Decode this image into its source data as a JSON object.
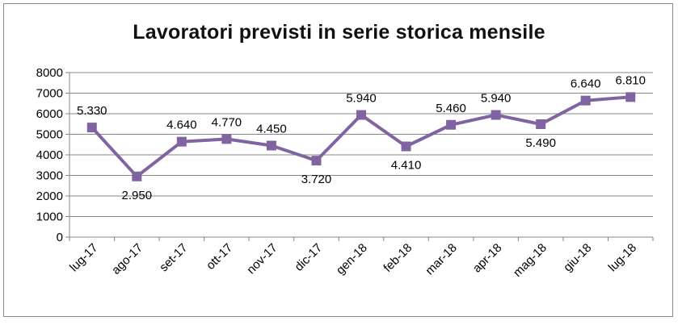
{
  "chart_data": {
    "type": "line",
    "title": "Lavoratori previsti in serie storica mensile",
    "xlabel": "",
    "ylabel": "",
    "categories": [
      "lug-17",
      "ago-17",
      "set-17",
      "ott-17",
      "nov-17",
      "dic-17",
      "gen-18",
      "feb-18",
      "mar-18",
      "apr-18",
      "mag-18",
      "giu-18",
      "lug-18"
    ],
    "series": [
      {
        "values": [
          5330,
          2950,
          4640,
          4770,
          4450,
          3720,
          5940,
          4410,
          5460,
          5940,
          5490,
          6640,
          6810
        ],
        "data_labels": [
          "5.330",
          "2.950",
          "4.640",
          "4.770",
          "4.450",
          "3.720",
          "5.940",
          "4.410",
          "5.460",
          "5.940",
          "5.490",
          "6.640",
          "6.810"
        ],
        "color": "#8064a2"
      }
    ],
    "ylim": [
      0,
      8000
    ],
    "y_ticks": [
      "0",
      "1000",
      "2000",
      "3000",
      "4000",
      "5000",
      "6000",
      "7000",
      "8000"
    ],
    "grid": true,
    "legend": "none",
    "gridline_color": "#868686"
  }
}
